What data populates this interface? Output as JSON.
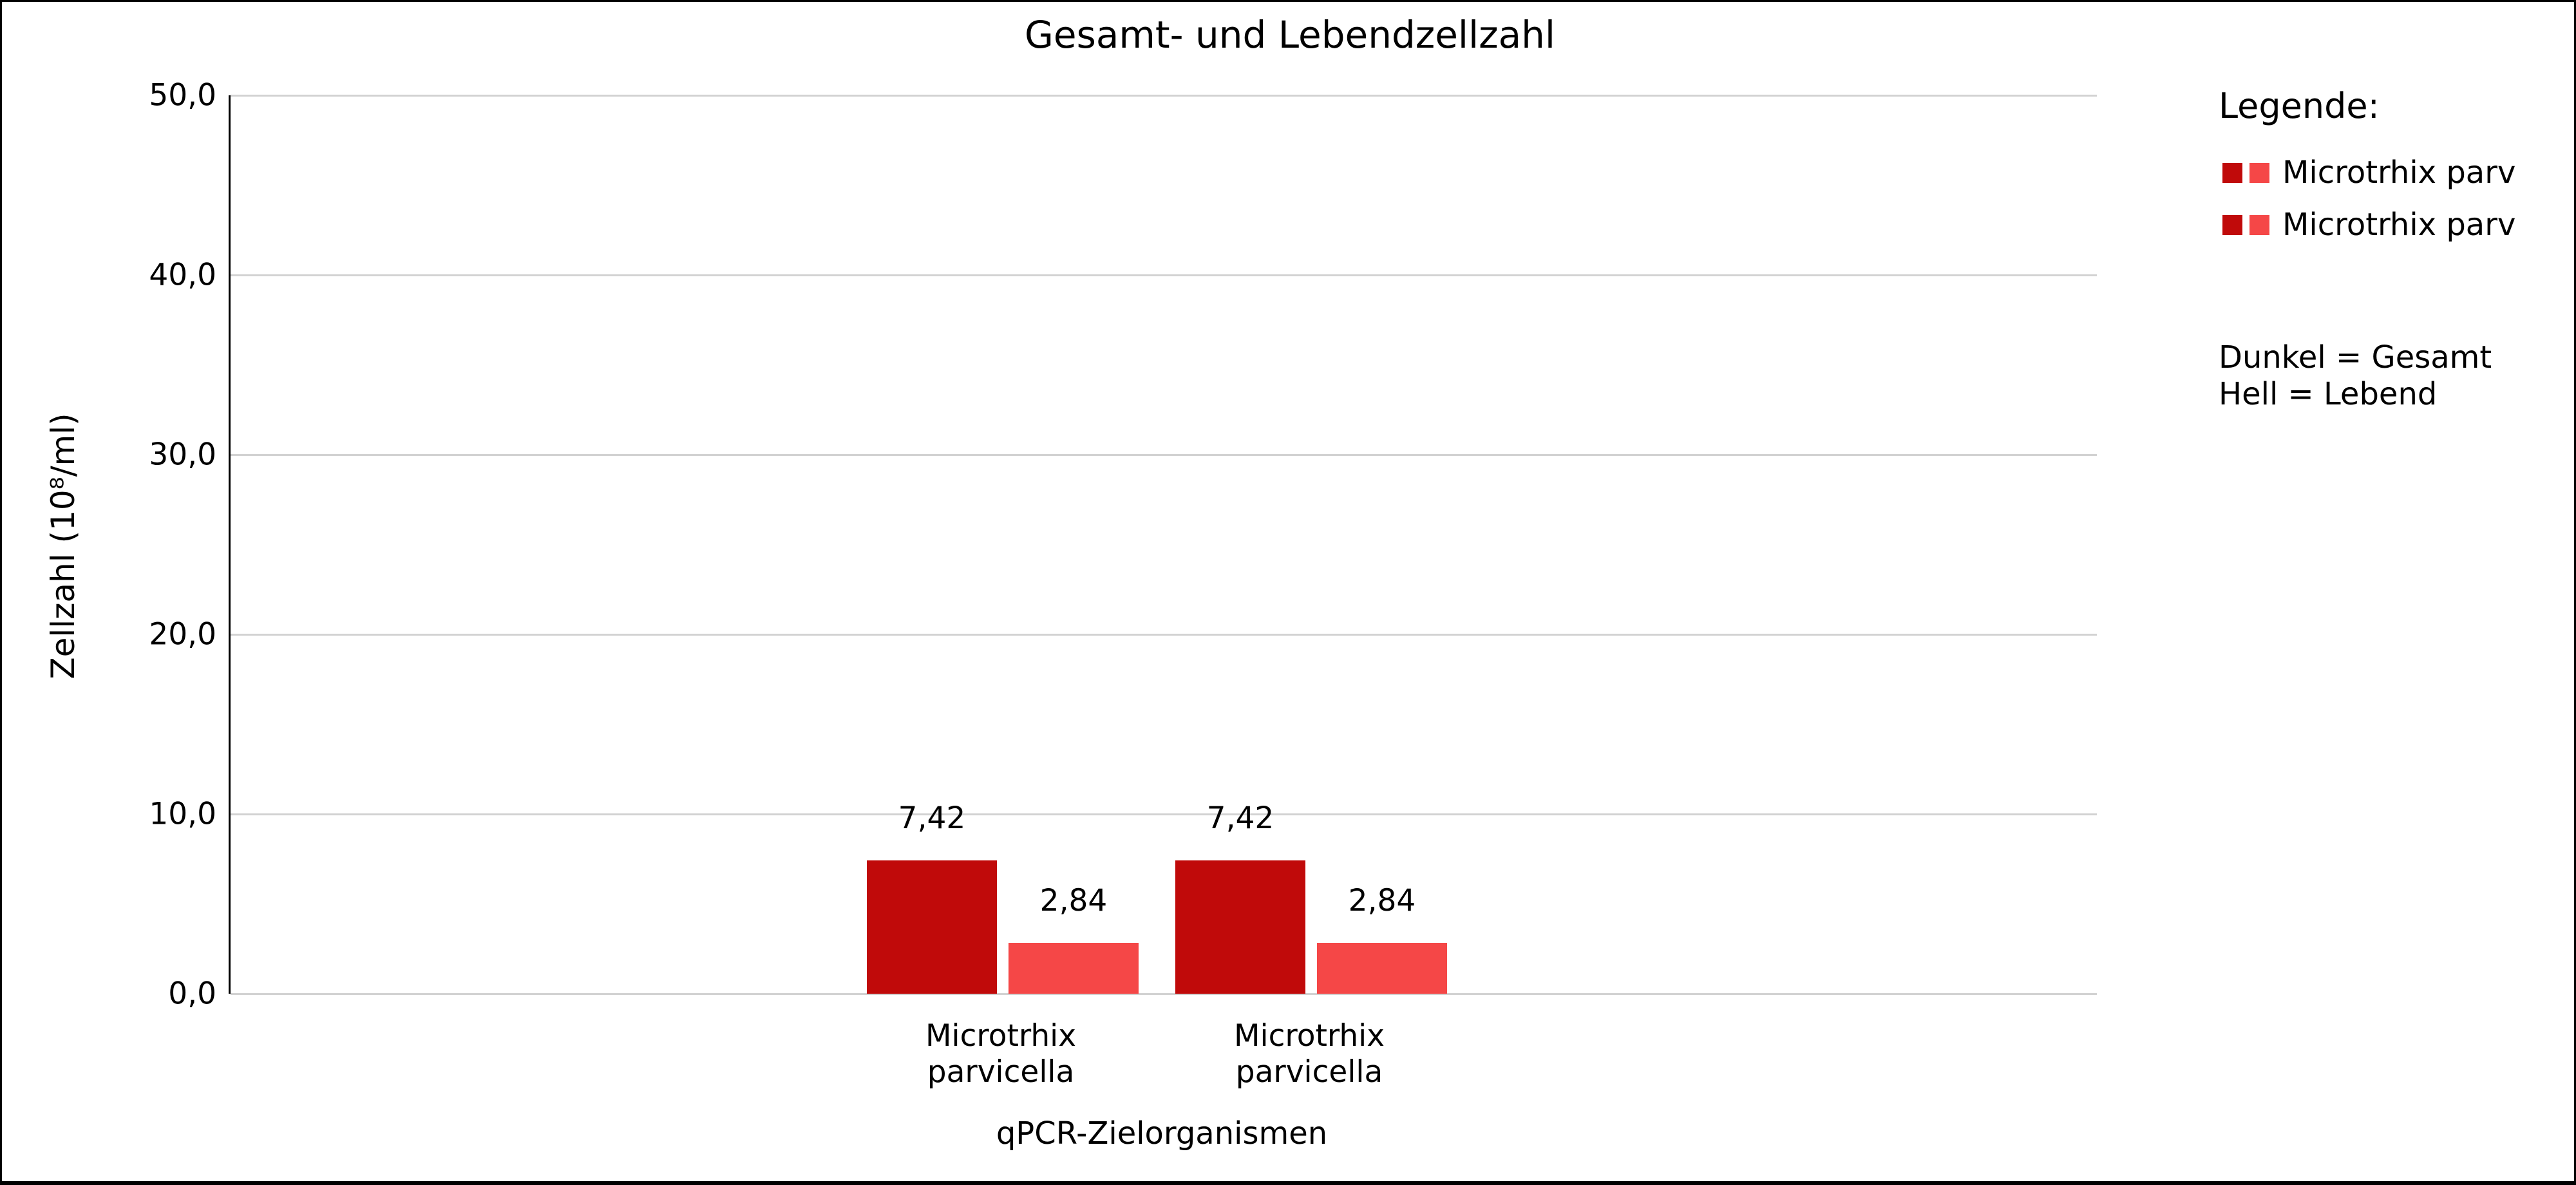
{
  "colors": {
    "dark_red": "#c00a0a",
    "light_red": "#f54747",
    "gridline": "#d2d2d2",
    "axis": "#000000"
  },
  "chart_data": {
    "type": "bar",
    "title": "Gesamt- und Lebendzellzahl",
    "xlabel": "qPCR-Zielorganismen",
    "ylabel": "Zellzahl (10⁸/ml)",
    "ylim": [
      0,
      50
    ],
    "grid": true,
    "legend_position": "right-outside",
    "yticks": [
      {
        "value": 50,
        "label": "50,0"
      },
      {
        "value": 40,
        "label": "40,0"
      },
      {
        "value": 30,
        "label": "30,0"
      },
      {
        "value": 20,
        "label": "20,0"
      },
      {
        "value": 10,
        "label": "10,0"
      },
      {
        "value": 0,
        "label": "0,0"
      }
    ],
    "categories": [
      "Microtrhix\nparvicella",
      "Microtrhix\nparvicella"
    ],
    "series": [
      {
        "name": "Gesamt (dunkel)",
        "color_key": "dark_red",
        "values": [
          7.42,
          7.42
        ],
        "labels": [
          "7,42",
          "7,42"
        ]
      },
      {
        "name": "Lebend (hell)",
        "color_key": "light_red",
        "values": [
          2.84,
          2.84
        ],
        "labels": [
          "2,84",
          "2,84"
        ]
      }
    ]
  },
  "legend": {
    "heading": "Legende:",
    "entries": [
      {
        "label": "Microtrhix parv",
        "swatches": [
          "dark_red",
          "light_red"
        ]
      },
      {
        "label": "Microtrhix parv",
        "swatches": [
          "dark_red",
          "light_red"
        ]
      }
    ],
    "note_line1": "Dunkel = Gesamt",
    "note_line2": "Hell = Lebend"
  }
}
